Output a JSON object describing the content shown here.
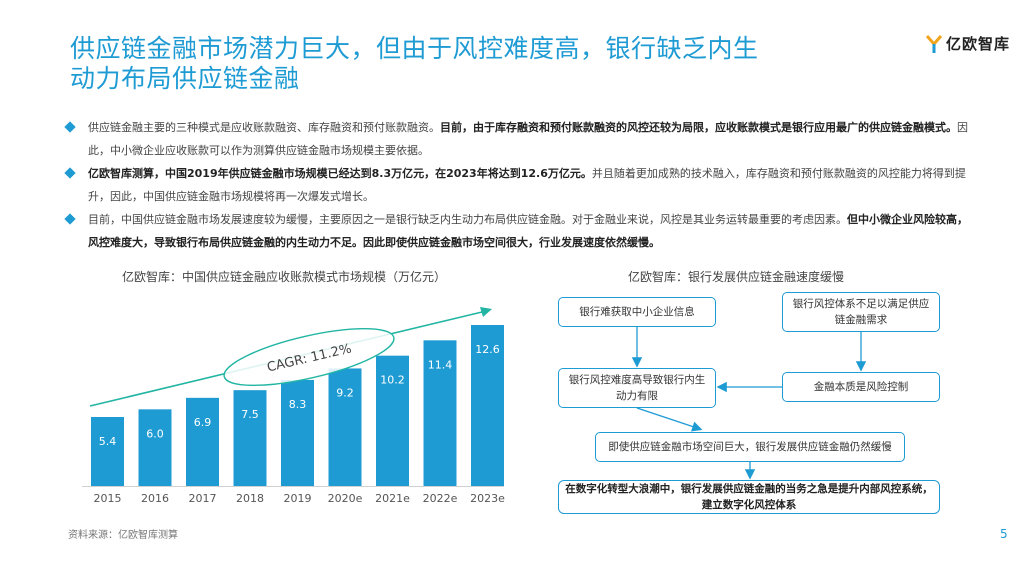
{
  "title": {
    "line1": "供应链金融市场潜力巨大，但由于风控难度高，银行缺乏内生",
    "line2": "动力布局供应链金融"
  },
  "logo": {
    "text": "亿欧智库"
  },
  "bullets": [
    {
      "normal1": "供应链金融主要的三种模式是应收账款融资、库存融资和预付账款融资。",
      "bold1": "目前，由于库存融资和预付账款融资的风控还较为局限，应收账款模式是银行应用最广的供应链金融模式。",
      "normal2": "因此，中小微企业应收账款可以作为测算供应链金融市场规模主要依据。"
    },
    {
      "bold1": "亿欧智库测算，中国2019年供应链金融市场规模已经达到8.3万亿元，在2023年将达到12.6万亿元。",
      "normal1": "并且随着更加成熟的技术融入，库存融资和预付账款融资的风控能力将得到提升，因此，中国供应链金融市场规模将再一次爆发式增长。"
    },
    {
      "normal1": "目前，中国供应链金融市场发展速度较为缓慢，主要原因之一是银行缺乏内生动力布局供应链金融。对于金融业来说，风控是其业务运转最重要的考虑因素。",
      "bold1": "但中小微企业风险较高，风控难度大，导致银行布局供应链金融的内生动力不足。因此即使供应链金融市场空间很大，行业发展速度依然缓慢。"
    }
  ],
  "chart_data": {
    "type": "bar",
    "title": "亿欧智库：中国供应链金融应收账款模式市场规模（万亿元）",
    "categories": [
      "2015",
      "2016",
      "2017",
      "2018",
      "2019",
      "2020e",
      "2021e",
      "2022e",
      "2023e"
    ],
    "values": [
      5.4,
      6.0,
      6.9,
      7.5,
      8.3,
      9.2,
      10.2,
      11.4,
      12.6
    ],
    "value_labels": [
      "5.4",
      "6.0",
      "6.9",
      "7.5",
      "8.3",
      "9.2",
      "10.2",
      "11.4",
      "12.6"
    ],
    "annotation": "CAGR: 11.2%",
    "color": "#1f9bd4",
    "ylim": [
      0,
      12.6
    ]
  },
  "flow": {
    "title": "亿欧智库：银行发展供应链金融速度缓慢",
    "box1": "银行难获取中小企业信息",
    "box2": "银行风控体系不足以满足供应链金融需求",
    "box3": "银行风控难度高导致银行内生动力有限",
    "box4": "金融本质是风险控制",
    "box5": "即使供应链金融市场空间巨大，银行发展供应链金融仍然缓慢",
    "box6": "在数字化转型大浪潮中，银行发展供应链金融的当务之急是提升内部风控系统，建立数字化风控体系"
  },
  "footer": {
    "source": "资料来源：亿欧智库测算",
    "page": "5"
  },
  "colors": {
    "accent": "#1f9bd4",
    "ellipse": "#22b5a3"
  }
}
